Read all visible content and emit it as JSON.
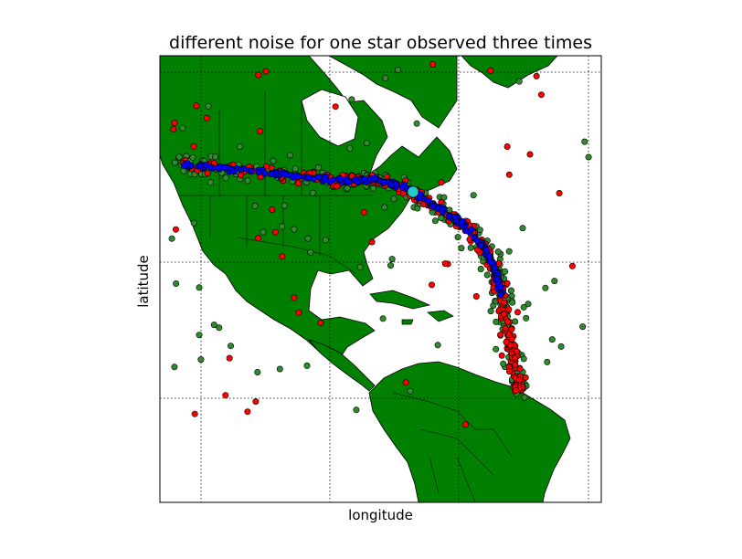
{
  "chart_data": {
    "type": "scatter",
    "title": "different noise for one star observed three times",
    "xlabel": "longitude",
    "ylabel": "latitude",
    "grid": true,
    "map": "Americas (North, Central, South) basemap",
    "colors": {
      "land": "#007f00",
      "ocean": "#ffffff",
      "series_green": "#2e8b2e",
      "series_red": "#ff0000",
      "series_blue": "#0000ff",
      "star": "#22cccc"
    },
    "series": [
      {
        "color": "green",
        "shape": "arc + scatter"
      },
      {
        "color": "red",
        "shape": "arc + scatter"
      },
      {
        "color": "blue",
        "shape": "tight arc"
      }
    ],
    "star_marker": {
      "color": "cyan"
    }
  }
}
